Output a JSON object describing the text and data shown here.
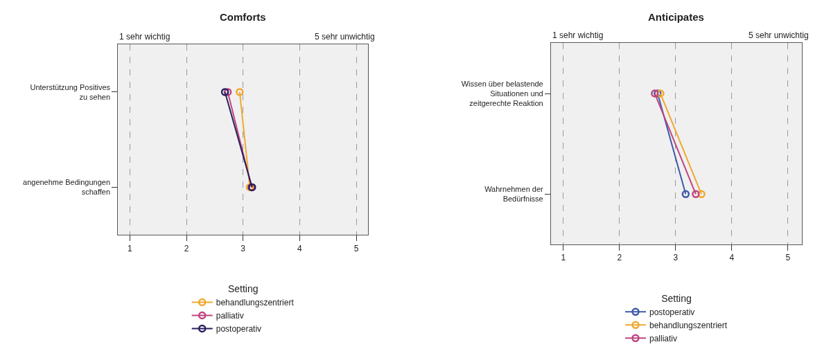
{
  "chart_data": [
    {
      "type": "line",
      "orientation": "horizontal",
      "title": "Comforts",
      "legend_title": "Setting",
      "legend": "bottom",
      "grid": "x",
      "marker": "circle",
      "annotations": [
        "1 sehr wichtig",
        "5 sehr unwichtig"
      ],
      "categories": [
        "Unterstützung Positives zu sehen",
        "angenehme Bedingungen schaffen"
      ],
      "xlim": [
        0.79,
        5.21
      ],
      "xticks": [
        1,
        2,
        3,
        4,
        5
      ],
      "series": [
        {
          "name": "behandlungszentriert",
          "color": "#f0a830",
          "values": [
            2.94,
            3.12
          ]
        },
        {
          "name": "palliativ",
          "color": "#c0447f",
          "values": [
            2.73,
            3.15
          ]
        },
        {
          "name": "postoperativ",
          "color": "#2a1f5e",
          "values": [
            2.68,
            3.16
          ]
        }
      ]
    },
    {
      "type": "line",
      "orientation": "horizontal",
      "title": "Anticipates",
      "legend_title": "Setting",
      "legend": "bottom",
      "grid": "x",
      "marker": "circle",
      "annotations": [
        "1 sehr wichtig",
        "5 sehr unwichtig"
      ],
      "categories": [
        "Wissen über belastende Situationen und zeitgerechte Reaktion",
        "Wahrnehmen der Bedürfnisse"
      ],
      "xlim": [
        0.78,
        5.25
      ],
      "xticks": [
        1,
        2,
        3,
        4,
        5
      ],
      "series": [
        {
          "name": "postoperativ",
          "color": "#3e5ba8",
          "values": [
            2.68,
            3.18
          ]
        },
        {
          "name": "behandlungszentriert",
          "color": "#f0a830",
          "values": [
            2.73,
            3.46
          ]
        },
        {
          "name": "palliativ",
          "color": "#c0447f",
          "values": [
            2.63,
            3.36
          ]
        }
      ]
    }
  ]
}
